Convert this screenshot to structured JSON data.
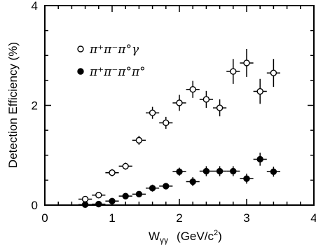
{
  "chart_data": {
    "type": "scatter",
    "xlabel": {
      "main": "W",
      "sub": "γγ",
      "unit_open": "(GeV/c",
      "unit_sup": "2",
      "unit_close": ")"
    },
    "ylabel": "Detection Efficiency    (%)",
    "xlim": [
      0,
      4
    ],
    "ylim": [
      0,
      4
    ],
    "x_ticks": [
      0,
      1,
      2,
      3,
      4
    ],
    "y_ticks": [
      0,
      2,
      4
    ],
    "x_minor_step": 0.2,
    "y_minor_step": 0.5,
    "grid": false,
    "legend_position": "top-left",
    "series": [
      {
        "name": "π⁺π⁻π°γ",
        "marker": "open-circle",
        "x": [
          0.6,
          0.8,
          1.0,
          1.2,
          1.4,
          1.6,
          1.8,
          2.0,
          2.2,
          2.4,
          2.6,
          2.8,
          3.0,
          3.2,
          3.4
        ],
        "y": [
          0.12,
          0.2,
          0.65,
          0.78,
          1.3,
          1.85,
          1.65,
          2.05,
          2.32,
          2.12,
          1.95,
          2.68,
          2.85,
          2.28,
          2.65
        ],
        "yerr": [
          0.04,
          0.04,
          0.07,
          0.07,
          0.09,
          0.12,
          0.12,
          0.16,
          0.17,
          0.17,
          0.17,
          0.25,
          0.28,
          0.25,
          0.28
        ]
      },
      {
        "name": "π⁺π⁻π°π°",
        "marker": "filled-circle",
        "x": [
          0.6,
          0.8,
          1.0,
          1.2,
          1.4,
          1.6,
          1.8,
          2.0,
          2.2,
          2.4,
          2.6,
          2.8,
          3.0,
          3.2,
          3.4
        ],
        "y": [
          0.01,
          0.02,
          0.08,
          0.18,
          0.22,
          0.34,
          0.38,
          0.67,
          0.47,
          0.68,
          0.68,
          0.68,
          0.53,
          0.92,
          0.67
        ],
        "yerr": [
          0.02,
          0.02,
          0.06,
          0.04,
          0.05,
          0.07,
          0.06,
          0.08,
          0.09,
          0.1,
          0.1,
          0.1,
          0.1,
          0.13,
          0.1
        ]
      }
    ],
    "xerr": 0.1
  }
}
